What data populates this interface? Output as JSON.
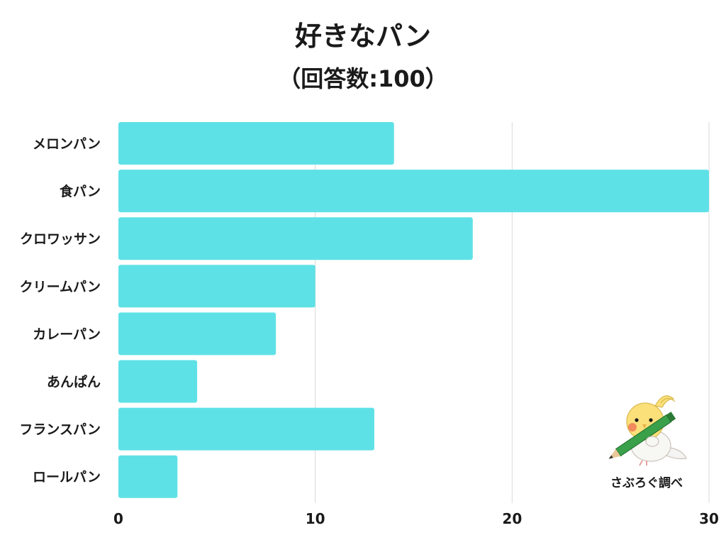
{
  "chart_data": {
    "type": "bar",
    "orientation": "horizontal",
    "title": "好きなパン",
    "subtitle": "（回答数:100）",
    "categories": [
      "メロンパン",
      "食パン",
      "クロワッサン",
      "クリームパン",
      "カレーパン",
      "あんぱん",
      "フランスパン",
      "ロールパン"
    ],
    "values": [
      14,
      30,
      18,
      10,
      8,
      4,
      13,
      3
    ],
    "xlim": [
      0,
      30
    ],
    "xticks": [
      0,
      10,
      20,
      30
    ],
    "grid": true,
    "bar_color": "#5ee1e6"
  },
  "credit": {
    "text": "さぶろぐ調べ",
    "mascot_icon": "cockatiel-holding-pencil-icon"
  }
}
